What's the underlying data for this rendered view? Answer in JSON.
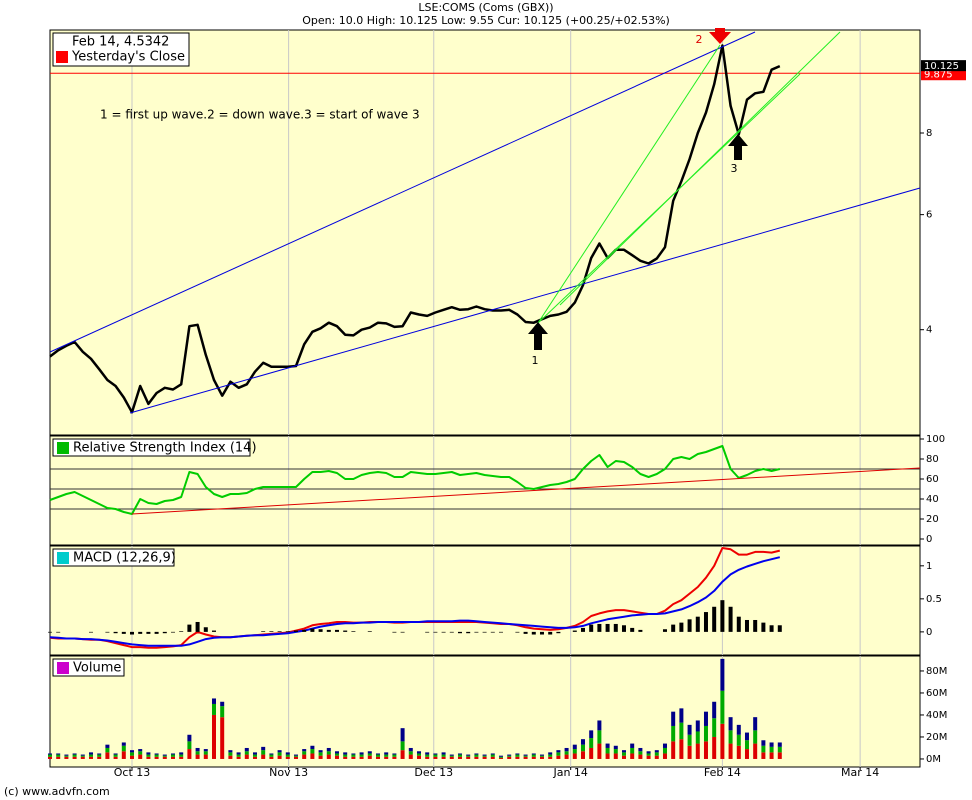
{
  "chart_data": [
    {
      "type": "line",
      "title": "LSE:COMS (Coms (GBX))",
      "subtitle": "Open: 10.0 High: 10.125 Low: 9.55 Cur: 10.125 (+00.25/+02.53%)",
      "legend_title": "Feb 14, 4.5342",
      "annotation": "1 = first up wave.2 = down wave.3 = start of wave 3",
      "wave_labels": [
        "1",
        "2",
        "3"
      ],
      "log_scale": true,
      "xlim": [
        0,
        106.1
      ],
      "ylim": [
        2.76,
        11.5
      ],
      "yticks": [
        4,
        6,
        8
      ],
      "current": 10.125,
      "reference_lines": [
        {
          "name": "Yesterday's Close",
          "value": 9.875,
          "color": "#ff0000"
        }
      ],
      "series": [
        {
          "color": "#000000",
          "values": [
            3.64,
            3.72,
            3.78,
            3.83,
            3.7,
            3.61,
            3.48,
            3.35,
            3.28,
            3.15,
            2.99,
            3.28,
            3.08,
            3.2,
            3.26,
            3.24,
            3.3,
            4.05,
            4.07,
            3.66,
            3.35,
            3.17,
            3.33,
            3.26,
            3.3,
            3.45,
            3.56,
            3.51,
            3.51,
            3.51,
            3.52,
            3.8,
            3.97,
            4.02,
            4.1,
            4.05,
            3.93,
            3.92,
            4.0,
            4.03,
            4.1,
            4.09,
            4.04,
            4.05,
            4.25,
            4.22,
            4.2,
            4.25,
            4.29,
            4.33,
            4.29,
            4.3,
            4.34,
            4.3,
            4.28,
            4.28,
            4.29,
            4.22,
            4.11,
            4.1,
            4.15,
            4.2,
            4.22,
            4.26,
            4.4,
            4.68,
            5.15,
            5.42,
            5.15,
            5.3,
            5.3,
            5.2,
            5.1,
            5.05,
            5.14,
            5.35,
            6.3,
            6.75,
            7.3,
            8.0,
            8.6,
            9.5,
            10.89,
            8.8,
            7.96,
            9.0,
            9.2,
            9.25,
            10.0,
            10.125
          ]
        }
      ],
      "source": "(c) www.advfn.com"
    },
    {
      "type": "line",
      "legend": "Relative Strength Index (14)",
      "legend_color": "#00bb00",
      "xlim": [
        0,
        106.1
      ],
      "ylim": [
        -6,
        103
      ],
      "yticks": [
        0,
        20,
        40,
        60,
        80,
        100
      ],
      "reference_lines": [
        30,
        50,
        70
      ],
      "series": [
        {
          "color": "#00cc00",
          "values": [
            39,
            42,
            45,
            47,
            43,
            39,
            35,
            31,
            30,
            27,
            25,
            40,
            36,
            35,
            38,
            39,
            42,
            67,
            65,
            52,
            45,
            42,
            45,
            45,
            46,
            50,
            52,
            52,
            52,
            52,
            52,
            60,
            67,
            67,
            68,
            66,
            60,
            60,
            64,
            66,
            67,
            66,
            62,
            62,
            67,
            66,
            65,
            65,
            66,
            67,
            64,
            65,
            66,
            64,
            63,
            62,
            62,
            57,
            51,
            50,
            52,
            54,
            55,
            57,
            60,
            70,
            78,
            84,
            72,
            78,
            77,
            72,
            65,
            62,
            65,
            70,
            80,
            82,
            80,
            85,
            87,
            90,
            93,
            70,
            61,
            64,
            68,
            70,
            68,
            70
          ]
        }
      ]
    },
    {
      "type": "line",
      "legend": "MACD (12,26,9)",
      "legend_color": "#00cccc",
      "xlim": [
        0,
        106.1
      ],
      "ylim": [
        -0.35,
        1.3
      ],
      "yticks": [
        0,
        0.5,
        1
      ],
      "series": [
        {
          "color": "#ee0000",
          "values": [
            -0.09,
            -0.1,
            -0.1,
            -0.1,
            -0.11,
            -0.12,
            -0.12,
            -0.14,
            -0.17,
            -0.2,
            -0.23,
            -0.23,
            -0.24,
            -0.24,
            -0.23,
            -0.22,
            -0.2,
            -0.08,
            0.0,
            -0.04,
            -0.07,
            -0.08,
            -0.08,
            -0.07,
            -0.06,
            -0.05,
            -0.04,
            -0.03,
            -0.02,
            -0.01,
            0.02,
            0.05,
            0.1,
            0.12,
            0.13,
            0.15,
            0.15,
            0.14,
            0.14,
            0.15,
            0.15,
            0.15,
            0.14,
            0.14,
            0.15,
            0.15,
            0.15,
            0.15,
            0.15,
            0.15,
            0.15,
            0.15,
            0.15,
            0.14,
            0.13,
            0.12,
            0.12,
            0.1,
            0.07,
            0.05,
            0.04,
            0.03,
            0.04,
            0.06,
            0.09,
            0.15,
            0.24,
            0.28,
            0.31,
            0.33,
            0.33,
            0.31,
            0.29,
            0.27,
            0.27,
            0.32,
            0.42,
            0.48,
            0.58,
            0.68,
            0.82,
            1.0,
            1.27,
            1.25,
            1.17,
            1.17,
            1.21,
            1.21,
            1.2,
            1.23
          ]
        },
        {
          "color": "#0000ee",
          "values": [
            -0.08,
            -0.09,
            -0.1,
            -0.1,
            -0.11,
            -0.11,
            -0.12,
            -0.13,
            -0.15,
            -0.17,
            -0.19,
            -0.2,
            -0.21,
            -0.21,
            -0.21,
            -0.21,
            -0.21,
            -0.19,
            -0.15,
            -0.11,
            -0.09,
            -0.08,
            -0.08,
            -0.07,
            -0.06,
            -0.05,
            -0.05,
            -0.04,
            -0.03,
            -0.02,
            0.0,
            0.02,
            0.05,
            0.08,
            0.1,
            0.12,
            0.13,
            0.13,
            0.14,
            0.14,
            0.15,
            0.15,
            0.15,
            0.15,
            0.15,
            0.15,
            0.16,
            0.16,
            0.16,
            0.16,
            0.17,
            0.17,
            0.16,
            0.15,
            0.14,
            0.13,
            0.12,
            0.11,
            0.1,
            0.09,
            0.08,
            0.07,
            0.06,
            0.06,
            0.07,
            0.09,
            0.13,
            0.16,
            0.19,
            0.21,
            0.23,
            0.25,
            0.26,
            0.27,
            0.27,
            0.28,
            0.31,
            0.34,
            0.39,
            0.45,
            0.52,
            0.62,
            0.76,
            0.87,
            0.94,
            0.99,
            1.03,
            1.07,
            1.1,
            1.13
          ]
        },
        {
          "type": "bar",
          "color": "#000000",
          "values": [
            -0.01,
            -0.01,
            0,
            0,
            0,
            -0.01,
            0,
            -0.01,
            -0.02,
            -0.03,
            -0.04,
            -0.03,
            -0.03,
            -0.03,
            -0.02,
            -0.01,
            0.01,
            0.11,
            0.15,
            0.07,
            0.02,
            0,
            0,
            0,
            0,
            0,
            0.01,
            0.01,
            0.01,
            0.01,
            0.02,
            0.03,
            0.05,
            0.04,
            0.03,
            0.03,
            0.02,
            0.01,
            0,
            0.01,
            0,
            0,
            -0.01,
            -0.01,
            0,
            0,
            -0.01,
            -0.01,
            -0.01,
            -0.01,
            -0.02,
            -0.02,
            -0.01,
            -0.01,
            -0.01,
            -0.01,
            0,
            -0.01,
            -0.03,
            -0.04,
            -0.04,
            -0.04,
            -0.02,
            0,
            0.02,
            0.06,
            0.11,
            0.12,
            0.12,
            0.12,
            0.1,
            0.06,
            0.03,
            0,
            0,
            0.04,
            0.11,
            0.14,
            0.19,
            0.23,
            0.3,
            0.38,
            0.48,
            0.38,
            0.23,
            0.18,
            0.18,
            0.14,
            0.1,
            0.1
          ]
        }
      ]
    },
    {
      "type": "bar",
      "stacked": true,
      "legend": "Volume",
      "legend_color": "#cc00cc",
      "xlim": [
        0,
        106.1
      ],
      "ylim": [
        -7.3,
        93.6
      ],
      "yticks": [
        {
          "value": 0,
          "label": "0M"
        },
        {
          "value": 20,
          "label": "20M"
        },
        {
          "value": 40,
          "label": "40M"
        },
        {
          "value": 60,
          "label": "60M"
        },
        {
          "value": 80,
          "label": "80M"
        }
      ],
      "xticks": [
        {
          "value": 10,
          "label": "Oct 13"
        },
        {
          "value": 29.1,
          "label": "Nov 13"
        },
        {
          "value": 46.8,
          "label": "Dec 13"
        },
        {
          "value": 63.5,
          "label": "Jan 14"
        },
        {
          "value": 82,
          "label": "Feb 14"
        },
        {
          "value": 98.8,
          "label": "Mar 14"
        }
      ],
      "series": [
        {
          "color": "#dd0000",
          "values": [
            2,
            2,
            2,
            2,
            2,
            2,
            2,
            6,
            2,
            7,
            3,
            4,
            2,
            2,
            2,
            2,
            2,
            9,
            4,
            4,
            40,
            38,
            3,
            2,
            4,
            2,
            4,
            2,
            3,
            2,
            2,
            4,
            5,
            3,
            4,
            3,
            2,
            2,
            2,
            3,
            2,
            2,
            2,
            8,
            4,
            3,
            2,
            2,
            2,
            2,
            2,
            2,
            2,
            2,
            2,
            1,
            2,
            2,
            2,
            2,
            2,
            2,
            3,
            4,
            5,
            7,
            10,
            14,
            5,
            5,
            3,
            5,
            4,
            3,
            3,
            5,
            16,
            18,
            12,
            14,
            16,
            20,
            32,
            14,
            12,
            9,
            14,
            6,
            6,
            6
          ]
        },
        {
          "color": "#00aa00",
          "values": [
            2,
            2,
            1,
            2,
            1,
            2,
            2,
            4,
            2,
            5,
            3,
            3,
            2,
            2,
            1,
            2,
            2,
            7,
            3,
            3,
            10,
            10,
            3,
            2,
            3,
            2,
            4,
            2,
            3,
            2,
            1,
            3,
            4,
            3,
            3,
            2,
            2,
            2,
            2,
            2,
            2,
            2,
            2,
            8,
            3,
            2,
            2,
            2,
            2,
            1,
            2,
            1,
            2,
            1,
            2,
            1,
            1,
            2,
            1,
            2,
            1,
            2,
            3,
            3,
            4,
            6,
            9,
            12,
            5,
            4,
            3,
            5,
            3,
            2,
            3,
            5,
            14,
            15,
            10,
            11,
            14,
            17,
            30,
            12,
            10,
            8,
            12,
            6,
            5,
            5
          ]
        },
        {
          "color": "#000088",
          "values": [
            1,
            1,
            1,
            1,
            1,
            2,
            1,
            3,
            1,
            3,
            2,
            2,
            2,
            1,
            1,
            1,
            2,
            6,
            3,
            2,
            5,
            4,
            2,
            2,
            3,
            2,
            3,
            1,
            2,
            2,
            1,
            2,
            3,
            2,
            3,
            2,
            2,
            1,
            2,
            2,
            1,
            2,
            1,
            12,
            3,
            2,
            2,
            1,
            2,
            1,
            1,
            1,
            1,
            1,
            1,
            1,
            1,
            1,
            1,
            1,
            1,
            2,
            2,
            3,
            4,
            5,
            7,
            9,
            4,
            3,
            2,
            4,
            3,
            2,
            2,
            4,
            13,
            13,
            9,
            10,
            13,
            15,
            29,
            12,
            9,
            7,
            12,
            5,
            4,
            4
          ]
        }
      ]
    }
  ]
}
